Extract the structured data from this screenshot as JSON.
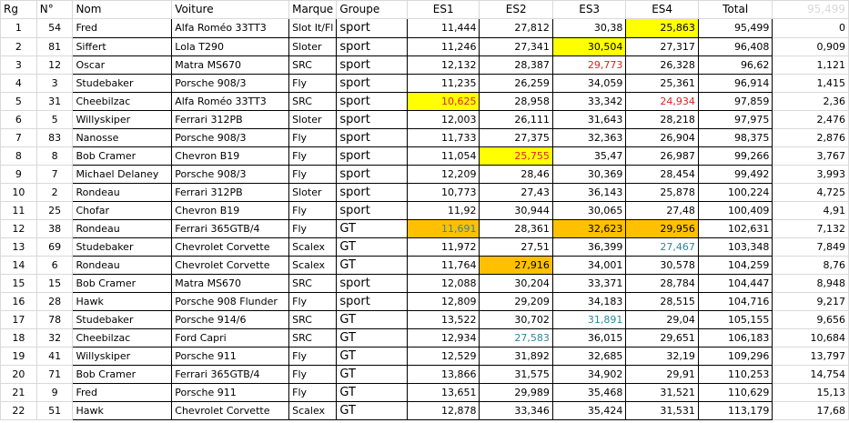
{
  "headers": {
    "rg": "Rg",
    "no": "N°",
    "nom": "Nom",
    "voiture": "Voiture",
    "marque": "Marque",
    "groupe": "Groupe",
    "es1": "ES1",
    "es2": "ES2",
    "es3": "ES3",
    "es4": "ES4",
    "total": "Total",
    "ref": "95,499"
  },
  "rows": [
    {
      "rg": "1",
      "no": "54",
      "nom": "Fred",
      "voiture": "Alfa Roméo 33TT3",
      "marque": "Slot It/Fl",
      "groupe": "sport",
      "es1": "11,444",
      "es2": "27,812",
      "es3": "30,38",
      "es4": "25,863",
      "total": "95,499",
      "ecart": "0"
    },
    {
      "rg": "2",
      "no": "81",
      "nom": "Siffert",
      "voiture": "Lola T290",
      "marque": "Sloter",
      "groupe": "sport",
      "es1": "11,246",
      "es2": "27,341",
      "es3": "30,504",
      "es4": "27,317",
      "total": "96,408",
      "ecart": "0,909"
    },
    {
      "rg": "3",
      "no": "12",
      "nom": "Oscar",
      "voiture": "Matra MS670",
      "marque": "SRC",
      "groupe": "sport",
      "es1": "12,132",
      "es2": "28,387",
      "es3": "29,773",
      "es4": "26,328",
      "total": "96,62",
      "ecart": "1,121"
    },
    {
      "rg": "4",
      "no": "3",
      "nom": "Studebaker",
      "voiture": "Porsche 908/3",
      "marque": "Fly",
      "groupe": "sport",
      "es1": "11,235",
      "es2": "26,259",
      "es3": "34,059",
      "es4": "25,361",
      "total": "96,914",
      "ecart": "1,415"
    },
    {
      "rg": "5",
      "no": "31",
      "nom": "Cheebilzac",
      "voiture": "Alfa Roméo 33TT3",
      "marque": "SRC",
      "groupe": "sport",
      "es1": "10,625",
      "es2": "28,958",
      "es3": "33,342",
      "es4": "24,934",
      "total": "97,859",
      "ecart": "2,36"
    },
    {
      "rg": "6",
      "no": "5",
      "nom": "Willyskiper",
      "voiture": "Ferrari 312PB",
      "marque": "Sloter",
      "groupe": "sport",
      "es1": "12,003",
      "es2": "26,111",
      "es3": "31,643",
      "es4": "28,218",
      "total": "97,975",
      "ecart": "2,476"
    },
    {
      "rg": "7",
      "no": "83",
      "nom": "Nanosse",
      "voiture": "Porsche 908/3",
      "marque": "Fly",
      "groupe": "sport",
      "es1": "11,733",
      "es2": "27,375",
      "es3": "32,363",
      "es4": "26,904",
      "total": "98,375",
      "ecart": "2,876"
    },
    {
      "rg": "8",
      "no": "8",
      "nom": "Bob Cramer",
      "voiture": "Chevron B19",
      "marque": "Fly",
      "groupe": "sport",
      "es1": "11,054",
      "es2": "25,755",
      "es3": "35,47",
      "es4": "26,987",
      "total": "99,266",
      "ecart": "3,767"
    },
    {
      "rg": "9",
      "no": "7",
      "nom": "Michael Delaney",
      "voiture": "Porsche 908/3",
      "marque": "Fly",
      "groupe": "sport",
      "es1": "12,209",
      "es2": "28,46",
      "es3": "30,369",
      "es4": "28,454",
      "total": "99,492",
      "ecart": "3,993"
    },
    {
      "rg": "10",
      "no": "2",
      "nom": "Rondeau",
      "voiture": "Ferrari 312PB",
      "marque": "Sloter",
      "groupe": "sport",
      "es1": "10,773",
      "es2": "27,43",
      "es3": "36,143",
      "es4": "25,878",
      "total": "100,224",
      "ecart": "4,725"
    },
    {
      "rg": "11",
      "no": "25",
      "nom": "Chofar",
      "voiture": "Chevron B19",
      "marque": "Fly",
      "groupe": "sport",
      "es1": "11,92",
      "es2": "30,944",
      "es3": "30,065",
      "es4": "27,48",
      "total": "100,409",
      "ecart": "4,91"
    },
    {
      "rg": "12",
      "no": "38",
      "nom": "Rondeau",
      "voiture": "Ferrari 365GTB/4",
      "marque": "Fly",
      "groupe": "GT",
      "es1": "11,691",
      "es2": "28,361",
      "es3": "32,623",
      "es4": "29,956",
      "total": "102,631",
      "ecart": "7,132"
    },
    {
      "rg": "13",
      "no": "69",
      "nom": "Studebaker",
      "voiture": "Chevrolet Corvette",
      "marque": "Scalex",
      "groupe": "GT",
      "es1": "11,972",
      "es2": "27,51",
      "es3": "36,399",
      "es4": "27,467",
      "total": "103,348",
      "ecart": "7,849"
    },
    {
      "rg": "14",
      "no": "6",
      "nom": "Rondeau",
      "voiture": "Chevrolet Corvette",
      "marque": "Scalex",
      "groupe": "GT",
      "es1": "11,764",
      "es2": "27,916",
      "es3": "34,001",
      "es4": "30,578",
      "total": "104,259",
      "ecart": "8,76"
    },
    {
      "rg": "15",
      "no": "15",
      "nom": "Bob Cramer",
      "voiture": "Matra MS670",
      "marque": "SRC",
      "groupe": "sport",
      "es1": "12,088",
      "es2": "30,204",
      "es3": "33,371",
      "es4": "28,784",
      "total": "104,447",
      "ecart": "8,948"
    },
    {
      "rg": "16",
      "no": "28",
      "nom": "Hawk",
      "voiture": "Porsche 908 Flunder",
      "marque": "Fly",
      "groupe": "sport",
      "es1": "12,809",
      "es2": "29,209",
      "es3": "34,183",
      "es4": "28,515",
      "total": "104,716",
      "ecart": "9,217"
    },
    {
      "rg": "17",
      "no": "78",
      "nom": "Studebaker",
      "voiture": "Porsche 914/6",
      "marque": "SRC",
      "groupe": "GT",
      "es1": "13,522",
      "es2": "30,702",
      "es3": "31,891",
      "es4": "29,04",
      "total": "105,155",
      "ecart": "9,656"
    },
    {
      "rg": "18",
      "no": "32",
      "nom": "Cheebilzac",
      "voiture": "Ford Capri",
      "marque": "SRC",
      "groupe": "GT",
      "es1": "12,934",
      "es2": "27,583",
      "es3": "36,015",
      "es4": "29,651",
      "total": "106,183",
      "ecart": "10,684"
    },
    {
      "rg": "19",
      "no": "41",
      "nom": "Willyskiper",
      "voiture": "Porsche 911",
      "marque": "Fly",
      "groupe": "GT",
      "es1": "12,529",
      "es2": "31,892",
      "es3": "32,685",
      "es4": "32,19",
      "total": "109,296",
      "ecart": "13,797"
    },
    {
      "rg": "20",
      "no": "71",
      "nom": "Bob Cramer",
      "voiture": "Ferrari 365GTB/4",
      "marque": "Fly",
      "groupe": "GT",
      "es1": "13,866",
      "es2": "31,575",
      "es3": "34,902",
      "es4": "29,91",
      "total": "110,253",
      "ecart": "14,754"
    },
    {
      "rg": "21",
      "no": "9",
      "nom": "Fred",
      "voiture": "Porsche 911",
      "marque": "Fly",
      "groupe": "GT",
      "es1": "13,651",
      "es2": "29,989",
      "es3": "35,468",
      "es4": "31,521",
      "total": "110,629",
      "ecart": "15,13"
    },
    {
      "rg": "22",
      "no": "51",
      "nom": "Hawk",
      "voiture": "Chevrolet Corvette",
      "marque": "Scalex",
      "groupe": "GT",
      "es1": "12,878",
      "es2": "33,346",
      "es3": "35,424",
      "es4": "31,531",
      "total": "113,179",
      "ecart": "17,68"
    }
  ],
  "highlights": [
    {
      "row": 0,
      "col": "es4",
      "fill": "yellow"
    },
    {
      "row": 1,
      "col": "es3",
      "fill": "yellow"
    },
    {
      "row": 2,
      "col": "es3",
      "text": "red"
    },
    {
      "row": 4,
      "col": "es1",
      "fill": "yellow",
      "text": "red"
    },
    {
      "row": 4,
      "col": "es4",
      "text": "red"
    },
    {
      "row": 7,
      "col": "es2",
      "fill": "yellow",
      "text": "red"
    },
    {
      "row": 11,
      "col": "es1",
      "fill": "orange",
      "text": "teal"
    },
    {
      "row": 11,
      "col": "es3",
      "fill": "orange"
    },
    {
      "row": 11,
      "col": "es4",
      "fill": "orange"
    },
    {
      "row": 12,
      "col": "es4",
      "text": "teal"
    },
    {
      "row": 13,
      "col": "es2",
      "fill": "orange"
    },
    {
      "row": 16,
      "col": "es3",
      "text": "teal"
    },
    {
      "row": 17,
      "col": "es2",
      "text": "teal"
    }
  ],
  "colors": {
    "yellow": "#ffff00",
    "orange": "#ffc000",
    "red": "#e02020",
    "teal": "#31869b",
    "gridline": "#d9d9d9",
    "ghost_text": "#d9d9d9"
  }
}
